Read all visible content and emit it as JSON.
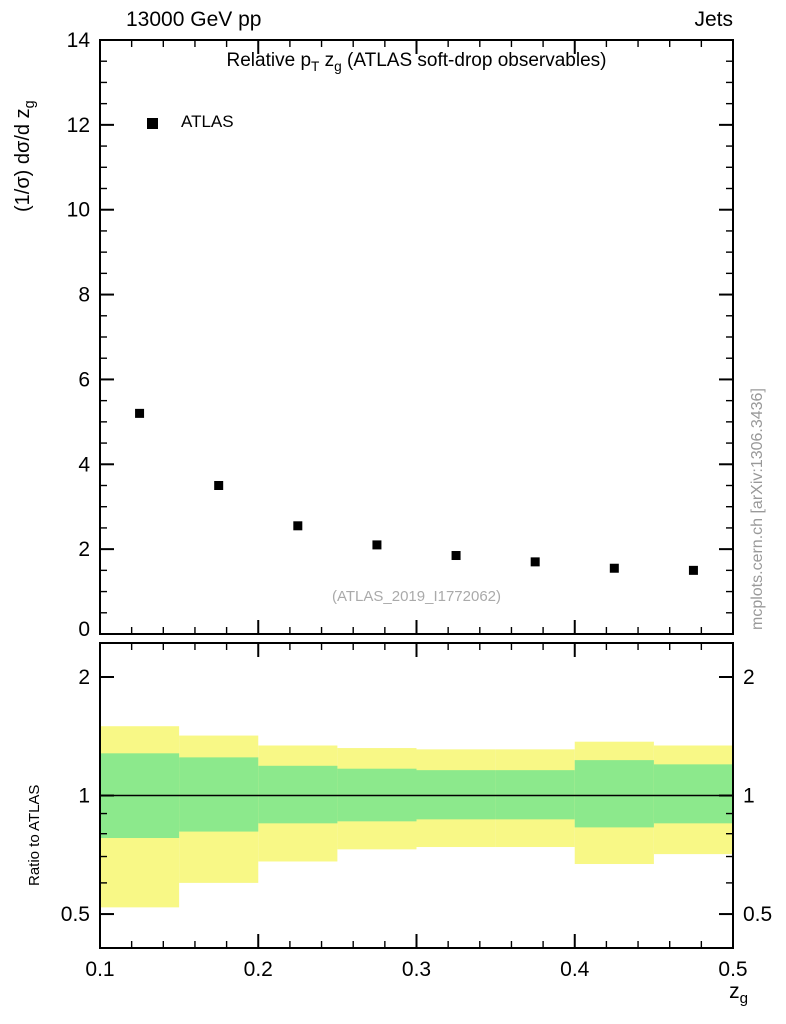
{
  "header": {
    "left": "13000 GeV pp",
    "right": "Jets"
  },
  "main": {
    "title": {
      "pre": "Relative p",
      "sub1": "T",
      "mid": " z",
      "sub2": "g",
      "post": " (ATLAS soft-drop observables)"
    },
    "ylabel": {
      "pre": "(1/σ) dσ/d z",
      "sub": "g"
    },
    "legend_label": "ATLAS",
    "watermark": "(ATLAS_2019_I1772062)"
  },
  "ratio": {
    "ylabel": "Ratio to ATLAS"
  },
  "xaxis": {
    "label_pre": "z",
    "label_sub": "g"
  },
  "side_note": "mcplots.cern.ch [arXiv:1306.3436]",
  "colors": {
    "yellow_band": "#f8f886",
    "green_band": "#8ce98c",
    "marker": "#000000",
    "muted_text": "#999999"
  },
  "chart_data": [
    {
      "type": "scatter",
      "panel": "main",
      "title": "Relative pT zg (ATLAS soft-drop observables)",
      "xlabel": "zg",
      "ylabel": "(1/sigma) dsigma/d zg",
      "xlim": [
        0.1,
        0.5
      ],
      "ylim": [
        0,
        14
      ],
      "xticks": [
        0.1,
        0.2,
        0.3,
        0.4,
        0.5
      ],
      "yticks": [
        0,
        2,
        4,
        6,
        8,
        10,
        12,
        14
      ],
      "x_minor_step": 0.02,
      "y_minor_step": 0.5,
      "grid": false,
      "legend_position": "top-left",
      "series": [
        {
          "name": "ATLAS",
          "marker": "filled-square",
          "color": "#000000",
          "x": [
            0.125,
            0.175,
            0.225,
            0.275,
            0.325,
            0.375,
            0.425,
            0.475
          ],
          "y": [
            5.2,
            3.5,
            2.55,
            2.1,
            1.85,
            1.7,
            1.55,
            1.5
          ]
        }
      ]
    },
    {
      "type": "band",
      "panel": "ratio",
      "ylabel": "Ratio to ATLAS",
      "yscale": "log",
      "xlim": [
        0.1,
        0.5
      ],
      "ylim": [
        0.41,
        2.44
      ],
      "yticks": [
        0.5,
        1,
        2
      ],
      "y_minor_ticks": [
        0.6,
        0.7,
        0.8,
        0.9
      ],
      "xticks": [
        0.1,
        0.2,
        0.3,
        0.4,
        0.5
      ],
      "x_minor_step": 0.02,
      "bin_edges": [
        0.1,
        0.15,
        0.2,
        0.25,
        0.3,
        0.35,
        0.4,
        0.45,
        0.5
      ],
      "bands": [
        {
          "name": "outer-uncertainty",
          "color": "#f8f886",
          "hi": [
            1.5,
            1.42,
            1.34,
            1.32,
            1.31,
            1.31,
            1.37,
            1.34
          ],
          "lo": [
            0.52,
            0.6,
            0.68,
            0.73,
            0.74,
            0.74,
            0.67,
            0.71
          ]
        },
        {
          "name": "inner-uncertainty",
          "color": "#8ce98c",
          "hi": [
            1.28,
            1.25,
            1.19,
            1.17,
            1.16,
            1.16,
            1.23,
            1.2
          ],
          "lo": [
            0.78,
            0.81,
            0.85,
            0.86,
            0.87,
            0.87,
            0.83,
            0.85
          ]
        }
      ],
      "reference_line": 1.0
    }
  ]
}
